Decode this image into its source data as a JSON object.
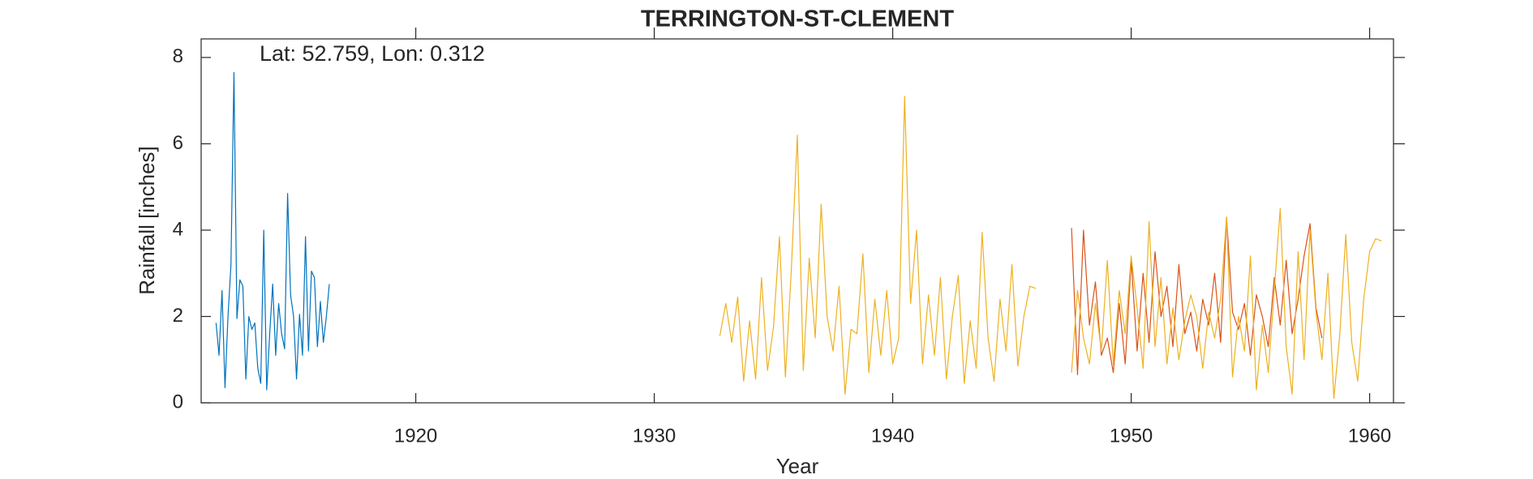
{
  "chart_data": {
    "type": "line",
    "title": "TERRINGTON-ST-CLEMENT",
    "annotation": "Lat: 52.759, Lon: 0.312",
    "xlabel": "Year",
    "ylabel": "Rainfall [inches]",
    "xlim": [
      1911,
      1961
    ],
    "ylim": [
      0,
      8.43
    ],
    "xticks": [
      1920,
      1930,
      1940,
      1950,
      1960
    ],
    "yticks": [
      0,
      2,
      4,
      6,
      8
    ],
    "series": [
      {
        "color": "#0072bd",
        "x": [
          1911.625,
          1911.75,
          1911.875,
          1912,
          1912.125,
          1912.25,
          1912.375,
          1912.5,
          1912.625,
          1912.75,
          1912.875,
          1913,
          1913.125,
          1913.25,
          1913.375,
          1913.5,
          1913.625,
          1913.75,
          1913.875,
          1914,
          1914.125,
          1914.25,
          1914.375,
          1914.5,
          1914.625,
          1914.75,
          1914.875,
          1915,
          1915.125,
          1915.25,
          1915.375,
          1915.5,
          1915.625,
          1915.75,
          1915.875,
          1916,
          1916.125,
          1916.25,
          1916.375
        ],
        "values": [
          1.85,
          1.1,
          2.6,
          0.35,
          2.0,
          3.2,
          7.65,
          1.95,
          2.85,
          2.7,
          0.55,
          2.0,
          1.7,
          1.85,
          0.8,
          0.45,
          4.0,
          0.3,
          1.6,
          2.75,
          1.1,
          2.3,
          1.6,
          1.25,
          4.85,
          2.5,
          2.0,
          0.55,
          2.05,
          1.1,
          3.85,
          1.2,
          3.05,
          2.9,
          1.3,
          2.35,
          1.4,
          2.0,
          2.75
        ]
      },
      {
        "color": "#d95319",
        "x": [
          1947.5,
          1947.75,
          1948,
          1948.25,
          1948.5,
          1948.75,
          1949,
          1949.25,
          1949.5,
          1949.75,
          1950,
          1950.25,
          1950.5,
          1950.75,
          1951,
          1951.25,
          1951.5,
          1951.75,
          1952,
          1952.25,
          1952.5,
          1952.75,
          1953,
          1953.25,
          1953.5,
          1953.75,
          1954,
          1954.25,
          1954.5,
          1954.75,
          1955,
          1955.25,
          1955.5,
          1955.75,
          1956,
          1956.25,
          1956.5,
          1956.75,
          1957,
          1957.25,
          1957.5,
          1957.75,
          1958
        ],
        "values": [
          4.05,
          0.65,
          4.0,
          1.8,
          2.8,
          1.1,
          1.5,
          0.7,
          2.3,
          0.9,
          3.3,
          1.2,
          3.0,
          1.4,
          3.5,
          2.0,
          2.7,
          1.3,
          3.2,
          1.6,
          2.1,
          1.2,
          2.4,
          1.8,
          3.0,
          1.4,
          4.3,
          2.1,
          1.7,
          2.3,
          1.1,
          2.5,
          2.0,
          1.3,
          2.9,
          1.8,
          3.3,
          1.6,
          2.4,
          3.4,
          4.15,
          2.2,
          1.5
        ]
      },
      {
        "color": "#edb120",
        "x": [
          1932.75,
          1933,
          1933.25,
          1933.5,
          1933.75,
          1934,
          1934.25,
          1934.5,
          1934.75,
          1935,
          1935.25,
          1935.5,
          1935.75,
          1936,
          1936.25,
          1936.5,
          1936.75,
          1937,
          1937.25,
          1937.5,
          1937.75,
          1938,
          1938.25,
          1938.5,
          1938.75,
          1939,
          1939.25,
          1939.5,
          1939.75,
          1940,
          1940.25,
          1940.5,
          1940.75,
          1941,
          1941.25,
          1941.5,
          1941.75,
          1942,
          1942.25,
          1942.5,
          1942.75,
          1943,
          1943.25,
          1943.5,
          1943.75,
          1944,
          1944.25,
          1944.5,
          1944.75,
          1945,
          1945.25,
          1945.5,
          1945.75,
          1946,
          1946.75,
          1947.5,
          1947.75,
          1948,
          1948.25,
          1948.5,
          1948.75,
          1949,
          1949.25,
          1949.5,
          1949.75,
          1950,
          1950.25,
          1950.5,
          1950.75,
          1951,
          1951.25,
          1951.5,
          1951.75,
          1952,
          1952.25,
          1952.5,
          1952.75,
          1953,
          1953.25,
          1953.5,
          1953.75,
          1954,
          1954.25,
          1954.5,
          1954.75,
          1955,
          1955.25,
          1955.5,
          1955.75,
          1956,
          1956.25,
          1956.5,
          1956.75,
          1957,
          1957.25,
          1957.5,
          1957.75,
          1958,
          1958.25,
          1958.5,
          1958.75,
          1959,
          1959.25,
          1959.5,
          1959.75,
          1960,
          1960.25,
          1960.5
        ],
        "values": [
          1.55,
          2.3,
          1.4,
          2.45,
          0.5,
          1.9,
          0.55,
          2.9,
          0.75,
          1.75,
          3.85,
          0.6,
          3.1,
          6.2,
          0.75,
          3.35,
          1.5,
          4.6,
          2.0,
          1.2,
          2.7,
          0.2,
          1.7,
          1.6,
          3.45,
          0.7,
          2.4,
          1.1,
          2.6,
          0.9,
          1.5,
          7.1,
          2.3,
          4.0,
          0.9,
          2.5,
          1.1,
          2.9,
          0.55,
          2.0,
          2.95,
          0.45,
          1.9,
          0.8,
          3.95,
          1.5,
          0.5,
          2.4,
          1.2,
          3.2,
          0.85,
          2.0,
          2.7,
          2.65,
          null,
          0.7,
          2.6,
          1.5,
          0.9,
          2.3,
          1.2,
          3.3,
          0.9,
          2.6,
          1.6,
          3.4,
          2.2,
          0.8,
          4.2,
          1.3,
          2.9,
          0.9,
          2.2,
          1.0,
          1.9,
          2.5,
          2.0,
          0.8,
          2.1,
          1.5,
          2.4,
          4.3,
          0.6,
          2.0,
          1.2,
          3.4,
          0.3,
          1.8,
          0.7,
          2.6,
          4.5,
          1.3,
          0.2,
          3.5,
          1.0,
          4.0,
          2.1,
          1.0,
          3.0,
          0.1,
          1.6,
          3.9,
          1.4,
          0.5,
          2.4,
          3.5,
          3.8,
          3.75
        ]
      }
    ]
  }
}
